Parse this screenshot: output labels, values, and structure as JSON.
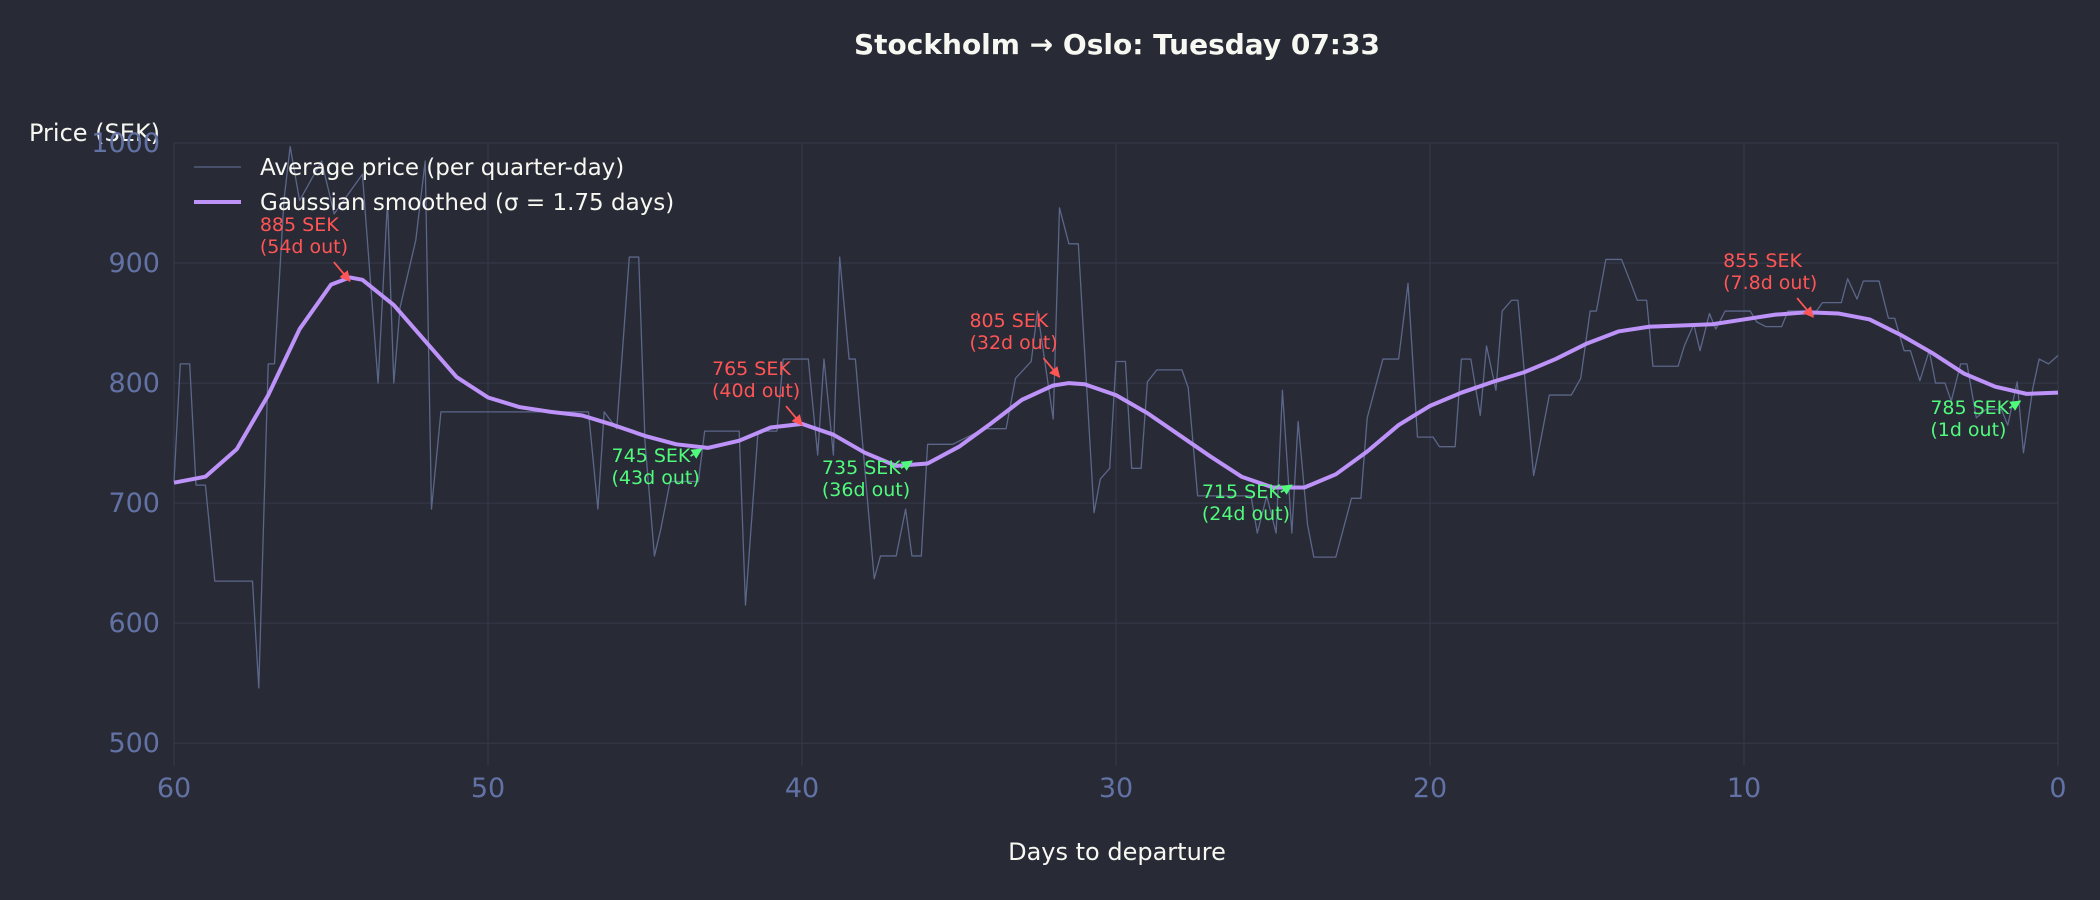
{
  "chart_data": {
    "type": "line",
    "title": "Stockholm → Oslo: Tuesday 07:33",
    "xlabel": "Days to departure",
    "ylabel": "Price (SEK)",
    "xlim": [
      60,
      0
    ],
    "xticks": [
      60,
      50,
      40,
      30,
      20,
      10,
      0
    ],
    "ylim": [
      481,
      1000
    ],
    "yticks": [
      500,
      600,
      700,
      800,
      900,
      1000
    ],
    "grid": true,
    "legend": "upper left",
    "series": [
      {
        "name": "Average price (per quarter-day)",
        "color": "#5c6689",
        "width": 1.3,
        "x": [
          60,
          59.8,
          59.5,
          59.3,
          59.0,
          58.7,
          57.5,
          57.3,
          57.0,
          56.8,
          56.5,
          56.3,
          56.0,
          55.3,
          54.9,
          54.0,
          53.5,
          53.2,
          53.0,
          52.8,
          52.3,
          52.0,
          51.8,
          51.5,
          46.8,
          46.5,
          46.3,
          45.9,
          45.5,
          45.2,
          45.0,
          44.7,
          44.5,
          44.2,
          44.0,
          43.3,
          43.1,
          42.0,
          41.8,
          41.4,
          40.8,
          40.6,
          39.8,
          39.5,
          39.3,
          39.0,
          38.8,
          38.5,
          38.3,
          37.7,
          37.5,
          37.0,
          36.7,
          36.5,
          36.2,
          36.0,
          35.2,
          34.2,
          33.5,
          33.2,
          32.7,
          32.5,
          32.0,
          31.8,
          31.5,
          31.2,
          30.7,
          30.5,
          30.2,
          30.0,
          29.7,
          29.5,
          29.2,
          29.0,
          28.7,
          27.9,
          27.7,
          27.4,
          25.7,
          25.5,
          25.2,
          24.9,
          24.7,
          24.4,
          24.2,
          23.9,
          23.7,
          23.0,
          22.5,
          22.2,
          22.0,
          21.5,
          21.0,
          20.7,
          20.4,
          19.9,
          19.7,
          19.2,
          19.0,
          18.7,
          18.4,
          18.2,
          17.9,
          17.7,
          17.4,
          17.2,
          16.7,
          16.5,
          16.2,
          15.5,
          15.2,
          14.9,
          14.7,
          14.4,
          13.9,
          13.6,
          13.4,
          13.1,
          12.9,
          12.1,
          11.9,
          11.6,
          11.4,
          11.1,
          10.9,
          10.6,
          9.8,
          9.6,
          9.3,
          8.8,
          8.6,
          8.1,
          7.8,
          7.5,
          6.9,
          6.7,
          6.4,
          6.2,
          5.7,
          5.4,
          5.2,
          4.9,
          4.7,
          4.4,
          4.1,
          3.9,
          3.6,
          3.4,
          3.1,
          2.9,
          2.6,
          2.3,
          1.8,
          1.6,
          1.3,
          1.1,
          0.8,
          0.6,
          0.3,
          0.0
        ],
        "values": [
          718,
          816,
          816,
          715,
          715,
          635,
          635,
          546,
          816,
          816,
          952,
          997,
          952,
          985,
          941,
          974,
          800,
          952,
          800,
          863,
          919,
          985,
          695,
          776,
          776,
          695,
          776,
          762,
          905,
          905,
          751,
          656,
          678,
          718,
          718,
          718,
          760,
          760,
          615,
          760,
          760,
          820,
          820,
          740,
          820,
          740,
          905,
          820,
          820,
          637,
          656,
          656,
          695,
          656,
          656,
          749,
          749,
          762,
          762,
          804,
          818,
          860,
          770,
          946,
          916,
          916,
          692,
          720,
          729,
          818,
          818,
          729,
          729,
          801,
          811,
          811,
          796,
          706,
          706,
          675,
          706,
          675,
          794,
          675,
          768,
          682,
          655,
          655,
          704,
          704,
          771,
          820,
          820,
          883,
          755,
          755,
          747,
          747,
          820,
          820,
          773,
          831,
          794,
          860,
          869,
          869,
          723,
          749,
          790,
          790,
          804,
          860,
          860,
          903,
          903,
          883,
          869,
          869,
          814,
          814,
          831,
          849,
          827,
          858,
          845,
          860,
          860,
          851,
          847,
          847,
          860,
          860,
          856,
          867,
          867,
          887,
          870,
          885,
          885,
          854,
          854,
          827,
          827,
          802,
          827,
          800,
          800,
          785,
          816,
          816,
          771,
          778,
          778,
          765,
          801,
          742,
          796,
          820,
          816,
          823
        ]
      },
      {
        "name": "Gaussian smoothed (σ = 1.75 days)",
        "color": "#bd93f9",
        "width": 4,
        "x": [
          60,
          59,
          58,
          57,
          56,
          55,
          54.4,
          54,
          53,
          52,
          51,
          50,
          49,
          48,
          47,
          46,
          45,
          44,
          43,
          42,
          41,
          40,
          39,
          38,
          37,
          36,
          35,
          34,
          33,
          32,
          31.5,
          31,
          30,
          29,
          28,
          27,
          26,
          25,
          24,
          23,
          22,
          21,
          20,
          19,
          18,
          17,
          16,
          15,
          14,
          13,
          12,
          11,
          10,
          9,
          8,
          7,
          6,
          5,
          4,
          3,
          2,
          1,
          0
        ],
        "values": [
          717,
          722,
          745,
          790,
          845,
          882,
          888,
          886,
          865,
          835,
          805,
          788,
          780,
          776,
          773,
          765,
          756,
          749,
          746,
          752,
          763,
          766,
          757,
          742,
          731,
          733,
          747,
          766,
          786,
          798,
          800,
          799,
          790,
          775,
          757,
          739,
          722,
          713,
          713,
          724,
          743,
          765,
          781,
          792,
          801,
          809,
          820,
          833,
          843,
          847,
          848,
          849,
          853,
          857,
          859,
          858,
          853,
          840,
          825,
          808,
          797,
          791,
          792
        ]
      }
    ],
    "annotations": {
      "peaks": {
        "color": "#ff5555",
        "items": [
          {
            "lines": [
              "885 SEK",
              "(54d out)"
            ],
            "x": 54.4,
            "y": 885
          },
          {
            "lines": [
              "765 SEK",
              "(40d out)"
            ],
            "x": 40.0,
            "y": 765
          },
          {
            "lines": [
              "805 SEK",
              "(32d out)"
            ],
            "x": 31.8,
            "y": 805
          },
          {
            "lines": [
              "855 SEK",
              "(7.8d out)"
            ],
            "x": 7.8,
            "y": 855
          }
        ]
      },
      "troughs": {
        "color": "#50fa7b",
        "items": [
          {
            "lines": [
              "745 SEK",
              "(43d out)"
            ],
            "x": 43.2,
            "y": 745
          },
          {
            "lines": [
              "735 SEK",
              "(36d out)"
            ],
            "x": 36.5,
            "y": 735
          },
          {
            "lines": [
              "715 SEK",
              "(24d out)"
            ],
            "x": 24.4,
            "y": 715
          },
          {
            "lines": [
              "785 SEK",
              "(1d out)"
            ],
            "x": 1.2,
            "y": 785
          }
        ]
      }
    }
  }
}
